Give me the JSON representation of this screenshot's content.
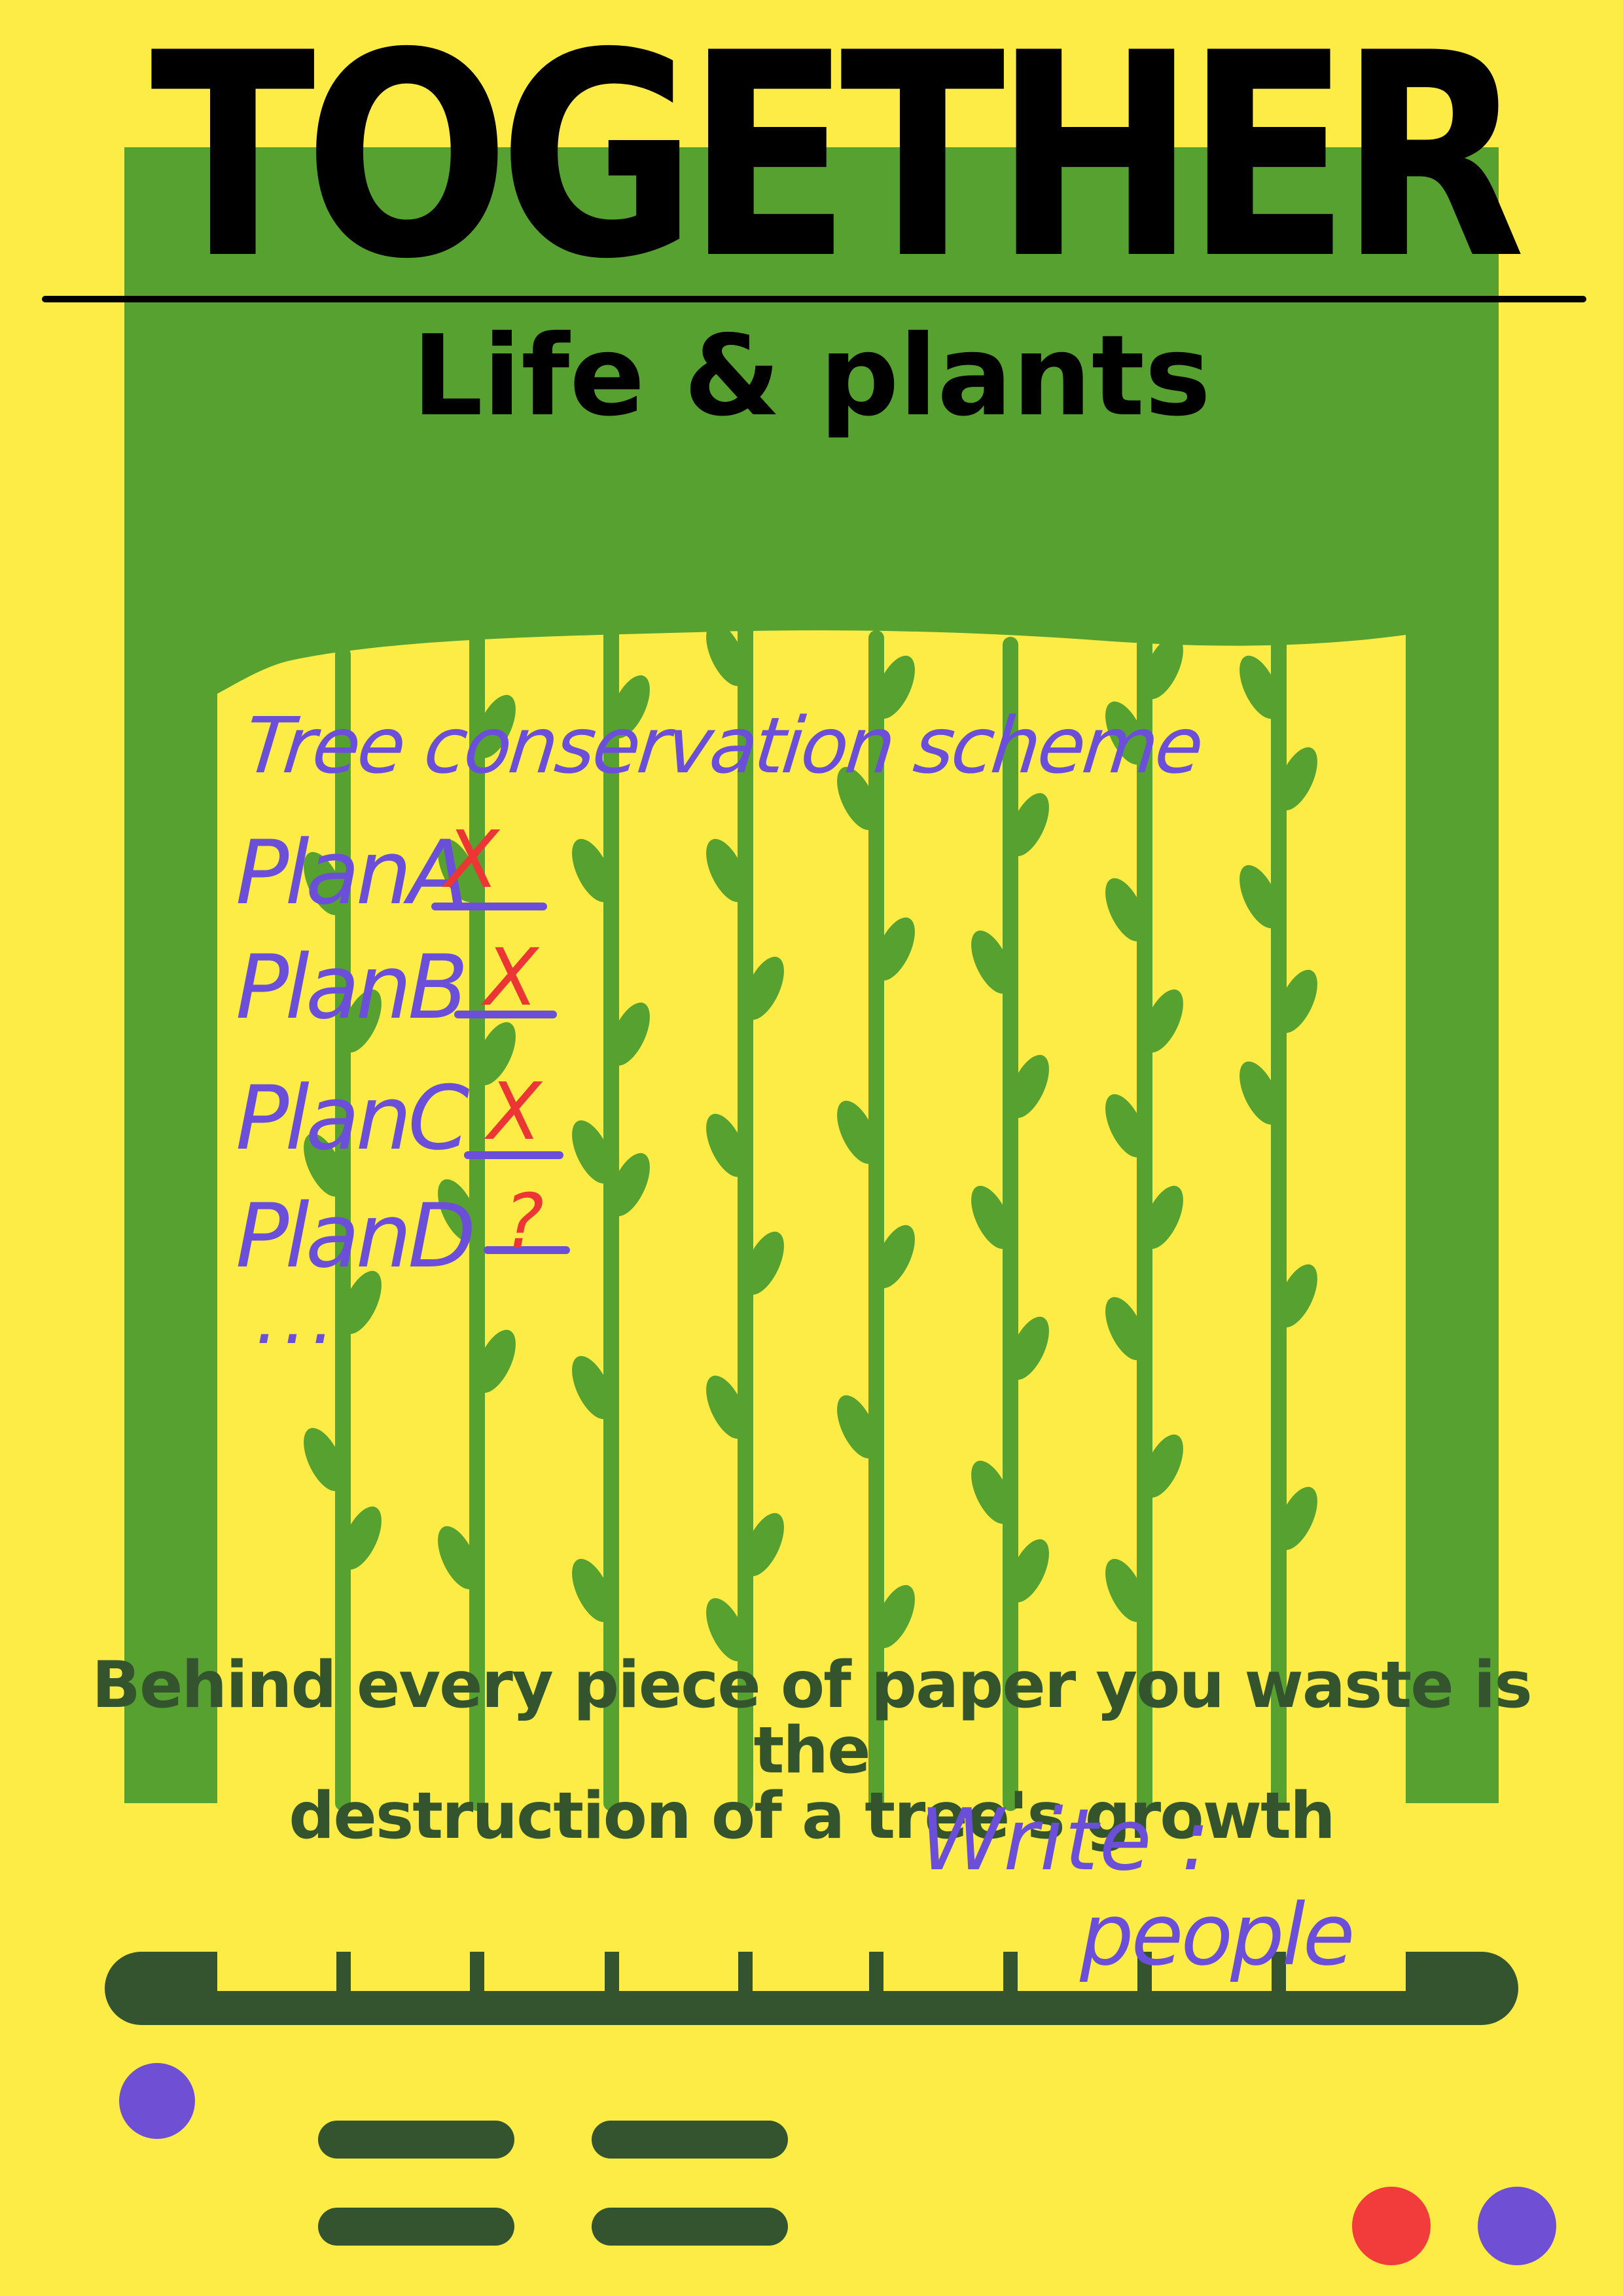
{
  "poster": {
    "title": "TOGETHER",
    "subtitle": "Life & plants",
    "slogan_line1": "Behind every piece of paper you waste is the",
    "slogan_line2": "destruction of a tree's growth"
  },
  "notes": {
    "heading": "Tree conservation scheme",
    "plans": [
      {
        "label": "PlanA",
        "mark": "X"
      },
      {
        "label": "PlanB",
        "mark": "X"
      },
      {
        "label": "PlanC",
        "mark": "X"
      },
      {
        "label": "PlanD",
        "mark": "?"
      }
    ],
    "ellipsis": "...",
    "signature_label": "Write :",
    "signature_name": "people"
  },
  "colors": {
    "background": "#fdec45",
    "foliage": "#56a130",
    "dark_green": "#33542f",
    "ink_purple": "#6b4fd8",
    "mark_red": "#ec3535",
    "dot_red": "#f23c3c",
    "dot_purple": "#6f50d4"
  }
}
